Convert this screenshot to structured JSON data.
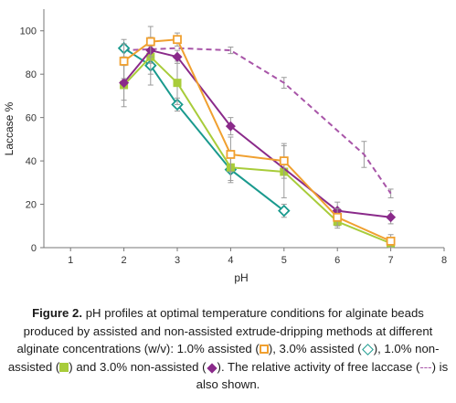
{
  "chart_data": {
    "type": "line",
    "xlabel": "pH",
    "ylabel": "Laccase %",
    "xlim": [
      0.5,
      8
    ],
    "ylim": [
      0,
      110
    ],
    "xticks": [
      1,
      2,
      3,
      4,
      5,
      6,
      7,
      8
    ],
    "yticks": [
      0,
      20,
      40,
      60,
      80,
      100
    ],
    "grid": false,
    "series": [
      {
        "key": "free",
        "marker": "none",
        "dashed": true,
        "color": "#a855a8",
        "points": [
          {
            "x": 2,
            "y": 91,
            "err": 0
          },
          {
            "x": 3,
            "y": 92,
            "err": 0
          },
          {
            "x": 4,
            "y": 91,
            "err": 1.5
          },
          {
            "x": 5,
            "y": 76,
            "err": 2.5
          },
          {
            "x": 6.5,
            "y": 43,
            "err": 6
          },
          {
            "x": 7,
            "y": 25,
            "err": 2
          }
        ]
      },
      {
        "key": "s1",
        "marker": "diamond-open",
        "color": "#1a9a8e",
        "points": [
          {
            "x": 2,
            "y": 92,
            "err": 4
          },
          {
            "x": 2.5,
            "y": 84,
            "err": 9
          },
          {
            "x": 3,
            "y": 66,
            "err": 3
          },
          {
            "x": 4,
            "y": 36,
            "err": 6
          },
          {
            "x": 5,
            "y": 17,
            "err": 3
          }
        ]
      },
      {
        "key": "s2",
        "marker": "square-fill",
        "color": "#a8cc3a",
        "points": [
          {
            "x": 2,
            "y": 75,
            "err": 10
          },
          {
            "x": 2.5,
            "y": 88,
            "err": 8
          },
          {
            "x": 3,
            "y": 76,
            "err": 10
          },
          {
            "x": 4,
            "y": 37,
            "err": 6
          },
          {
            "x": 5,
            "y": 35,
            "err": 12
          },
          {
            "x": 6,
            "y": 12,
            "err": 3
          },
          {
            "x": 7,
            "y": 2,
            "err": 2
          }
        ]
      },
      {
        "key": "s3",
        "marker": "diamond-fill",
        "color": "#8a2a8a",
        "points": [
          {
            "x": 2,
            "y": 76,
            "err": 8
          },
          {
            "x": 2.5,
            "y": 91,
            "err": 6
          },
          {
            "x": 3,
            "y": 88,
            "err": 3
          },
          {
            "x": 4,
            "y": 56,
            "err": 4
          },
          {
            "x": 6,
            "y": 17,
            "err": 4
          },
          {
            "x": 7,
            "y": 14,
            "err": 3
          }
        ]
      },
      {
        "key": "s4",
        "marker": "square-open",
        "color": "#f0a030",
        "points": [
          {
            "x": 2,
            "y": 86,
            "err": 8
          },
          {
            "x": 2.5,
            "y": 95,
            "err": 7
          },
          {
            "x": 3,
            "y": 96,
            "err": 3
          },
          {
            "x": 4,
            "y": 43,
            "err": 8
          },
          {
            "x": 5,
            "y": 40,
            "err": 8
          },
          {
            "x": 6,
            "y": 14,
            "err": 4
          },
          {
            "x": 7,
            "y": 3,
            "err": 3
          }
        ]
      }
    ]
  },
  "caption": {
    "label": "Figure 2.",
    "text_1": " pH profiles at optimal temperature conditions for alginate beads produced by assisted and non-assisted extrude-dripping methods at different alginate concentrations (w/v): 1.0% assisted (",
    "text_2": "), 3.0% assisted (",
    "text_3": "), 1.0% non-assisted (",
    "text_4": ") and 3.0% non-assisted (",
    "text_5": "). The relative activity of free laccase (",
    "dash": "---",
    "text_6": ") is also shown."
  }
}
